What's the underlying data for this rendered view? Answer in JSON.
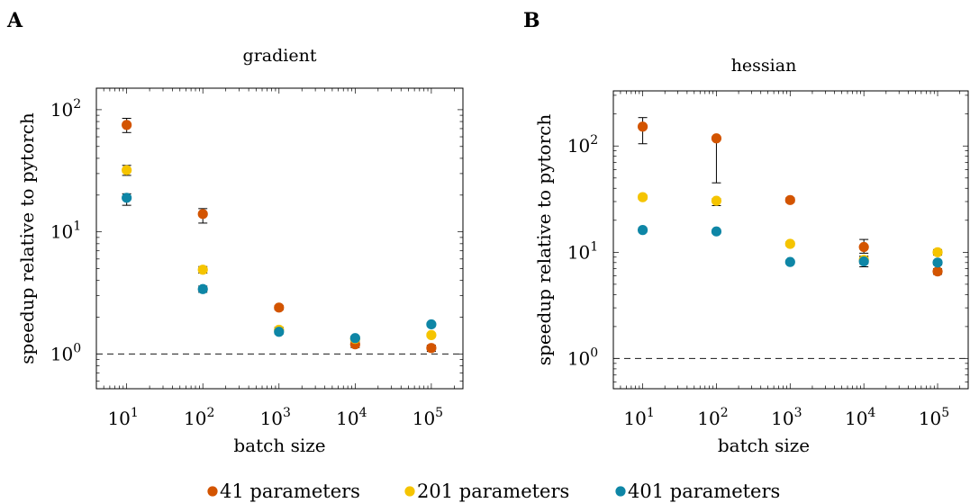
{
  "chart_data": [
    {
      "panel": "A",
      "type": "scatter",
      "title": "gradient",
      "xlabel": "batch size",
      "ylabel": "speedup relative to pytorch",
      "xscale": "log",
      "yscale": "log",
      "xlim": [
        4,
        260000
      ],
      "ylim": [
        0.52,
        150
      ],
      "x": [
        10,
        100,
        1000,
        10000,
        100000
      ],
      "x_tick_labels": [
        {
          "base": "10",
          "exp": "1",
          "value": 10
        },
        {
          "base": "10",
          "exp": "2",
          "value": 100
        },
        {
          "base": "10",
          "exp": "3",
          "value": 1000
        },
        {
          "base": "10",
          "exp": "4",
          "value": 10000
        },
        {
          "base": "10",
          "exp": "5",
          "value": 100000
        }
      ],
      "y_tick_labels": [
        {
          "base": "10",
          "exp": "0",
          "value": 1
        },
        {
          "base": "10",
          "exp": "1",
          "value": 10
        },
        {
          "base": "10",
          "exp": "2",
          "value": 100
        }
      ],
      "reference_line": 1,
      "series": [
        {
          "name": "41 parameters",
          "color": "#D35400",
          "values": [
            75,
            14,
            2.4,
            1.2,
            1.12
          ],
          "errors": [
            [
              65,
              85
            ],
            [
              11.8,
              15.5
            ],
            [
              2.3,
              2.5
            ],
            [
              1.13,
              1.27
            ],
            [
              1.05,
              1.18
            ]
          ]
        },
        {
          "name": "201 parameters",
          "color": "#F5C400",
          "values": [
            32,
            4.9,
            1.58,
            1.33,
            1.43
          ],
          "errors": [
            [
              29,
              35
            ],
            [
              4.6,
              5.2
            ],
            [
              1.5,
              1.66
            ],
            [
              1.28,
              1.38
            ],
            [
              1.38,
              1.48
            ]
          ]
        },
        {
          "name": "401 parameters",
          "color": "#0E86A6",
          "values": [
            19,
            3.4,
            1.52,
            1.35,
            1.75
          ],
          "errors": [
            [
              16.5,
              20.5
            ],
            [
              3.2,
              3.6
            ],
            [
              1.46,
              1.58
            ],
            [
              1.3,
              1.4
            ],
            [
              1.7,
              1.8
            ]
          ]
        }
      ]
    },
    {
      "panel": "B",
      "type": "scatter",
      "title": "hessian",
      "xlabel": "batch size",
      "ylabel": "speedup relative to pytorch",
      "xscale": "log",
      "yscale": "log",
      "xlim": [
        4,
        260000
      ],
      "ylim": [
        0.52,
        330
      ],
      "x": [
        10,
        100,
        1000,
        10000,
        100000
      ],
      "x_tick_labels": [
        {
          "base": "10",
          "exp": "1",
          "value": 10
        },
        {
          "base": "10",
          "exp": "2",
          "value": 100
        },
        {
          "base": "10",
          "exp": "3",
          "value": 1000
        },
        {
          "base": "10",
          "exp": "4",
          "value": 10000
        },
        {
          "base": "10",
          "exp": "5",
          "value": 100000
        }
      ],
      "y_tick_labels": [
        {
          "base": "10",
          "exp": "0",
          "value": 1
        },
        {
          "base": "10",
          "exp": "1",
          "value": 10
        },
        {
          "base": "10",
          "exp": "2",
          "value": 100
        }
      ],
      "reference_line": 1,
      "series": [
        {
          "name": "41 parameters",
          "color": "#D35400",
          "values": [
            152,
            118,
            31,
            11.2,
            6.6
          ],
          "errors": [
            [
              105,
              185
            ],
            [
              45,
              122
            ],
            [
              29.5,
              32.5
            ],
            [
              9.8,
              13.2
            ],
            [
              6.2,
              7.0
            ]
          ]
        },
        {
          "name": "201 parameters",
          "color": "#F5C400",
          "values": [
            33,
            30.5,
            12,
            8.5,
            10
          ],
          "errors": [
            [
              31.5,
              34.5
            ],
            [
              27.5,
              32
            ],
            [
              11.5,
              12.5
            ],
            [
              7.8,
              9.2
            ],
            [
              9.4,
              10.6
            ]
          ]
        },
        {
          "name": "401 parameters",
          "color": "#0E86A6",
          "values": [
            16.2,
            15.7,
            8.1,
            8.2,
            8.0
          ],
          "errors": [
            [
              15.5,
              17
            ],
            [
              15,
              16.4
            ],
            [
              7.8,
              8.4
            ],
            [
              7.3,
              9.0
            ],
            [
              7.6,
              8.4
            ]
          ]
        }
      ]
    }
  ],
  "legend": {
    "placement": "bottom-center",
    "items": [
      {
        "label": "41 parameters",
        "color": "#D35400"
      },
      {
        "label": "201 parameters",
        "color": "#F5C400"
      },
      {
        "label": "401 parameters",
        "color": "#0E86A6"
      }
    ]
  }
}
